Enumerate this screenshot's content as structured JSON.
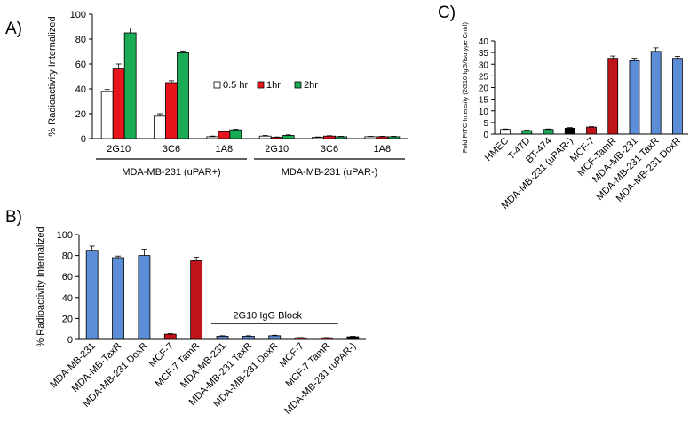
{
  "panels": {
    "A": "A)",
    "B": "B)",
    "C": "C)"
  },
  "colors": {
    "white": "#ffffff",
    "red": "#e8141b",
    "green": "#1bab55",
    "blue": "#5b8ed6",
    "darkred": "#c0141b",
    "black": "#000000",
    "edge": "#000000"
  },
  "chart_data": [
    {
      "id": "A",
      "type": "bar",
      "title": "",
      "ylabel": "% Radioactivity Internalized",
      "ylim": [
        0,
        100
      ],
      "yticks": [
        0,
        20,
        40,
        60,
        80,
        100
      ],
      "categories": [
        "2G10",
        "3C6",
        "1A8",
        "2G10",
        "3C6",
        "1A8"
      ],
      "groups": [
        "MDA-MB-231 (uPAR+)",
        "MDA-MB-231 (uPAR-)"
      ],
      "series": [
        {
          "name": "0.5 hr",
          "color": "#ffffff",
          "values": [
            38,
            18,
            1.5,
            2,
            1,
            1.5
          ],
          "errors": [
            1.5,
            2,
            0.5,
            0.5,
            0.3,
            0.3
          ]
        },
        {
          "name": "1hr",
          "color": "#e8141b",
          "values": [
            56,
            45,
            5.5,
            1,
            2,
            1.5
          ],
          "errors": [
            4,
            1.5,
            0.5,
            0.3,
            0.3,
            0.3
          ]
        },
        {
          "name": "2hr",
          "color": "#1bab55",
          "values": [
            85,
            69,
            7,
            2.5,
            1.5,
            1.5
          ],
          "errors": [
            4,
            1.5,
            0.5,
            0.5,
            0.3,
            0.3
          ]
        }
      ]
    },
    {
      "id": "B",
      "type": "bar",
      "title": "",
      "ylabel": "% Radioactivity Internalized",
      "ylim": [
        0,
        100
      ],
      "yticks": [
        0,
        20,
        40,
        60,
        80,
        100
      ],
      "annotation": "2G10 IgG Block",
      "categories": [
        "MDA-MB-231",
        "MDA-MB-TaxR",
        "MDA-MB-231 DoxR",
        "MCF-7",
        "MCF-7 TamR",
        "MDA-MB-231",
        "MDA-MB-231 TaxR",
        "MDA-MB-231 DoxR",
        "MCF-7",
        "MCF-7 TamR",
        "MDA-MB-231 (uPAR-)"
      ],
      "values": [
        85,
        78,
        80,
        5,
        75,
        3,
        3,
        3.5,
        1.5,
        1.5,
        2.5
      ],
      "errors": [
        4,
        1.5,
        6,
        0.5,
        3.5,
        0.5,
        0.5,
        0.5,
        0.3,
        0.3,
        0.5
      ],
      "bar_colors": [
        "blue",
        "blue",
        "blue",
        "darkred",
        "darkred",
        "blue",
        "blue",
        "blue",
        "darkred",
        "darkred",
        "black"
      ]
    },
    {
      "id": "C",
      "type": "bar",
      "title": "",
      "ylabel": "Fold FITC Intensity (2G10 IgG/Isotype Cntrl)",
      "ylim": [
        0,
        40
      ],
      "yticks": [
        0,
        5,
        10,
        15,
        20,
        25,
        30,
        35,
        40
      ],
      "categories": [
        "HMEC",
        "T-47D",
        "BT-474",
        "MDA-MB-231 (uPAR-)",
        "MCF-7",
        "MCF-TamR",
        "MDA-MB-231",
        "MDA-MB-231 TaxR",
        "MDA-MB-231 DoxR"
      ],
      "values": [
        2,
        1.5,
        2,
        2.5,
        3,
        32.5,
        31.5,
        35.5,
        32.5
      ],
      "errors": [
        0.2,
        0.2,
        0.2,
        0.3,
        0.2,
        1,
        1,
        1.5,
        0.8
      ],
      "bar_colors": [
        "white",
        "green",
        "green",
        "black",
        "darkred",
        "darkred",
        "blue",
        "blue",
        "blue"
      ]
    }
  ]
}
